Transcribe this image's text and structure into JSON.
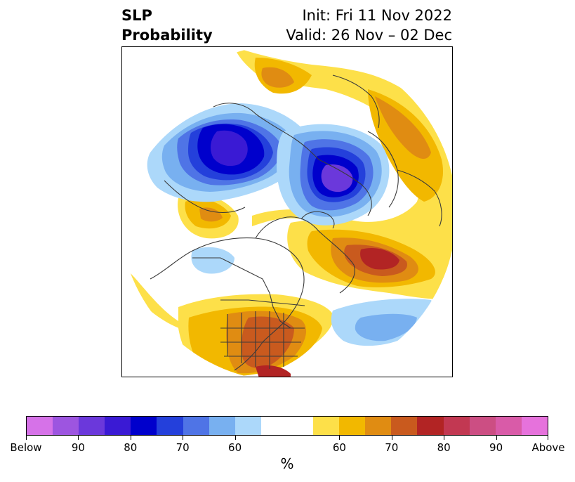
{
  "title": {
    "left_line1": "SLP",
    "left_line2": "Probability",
    "right_line1": "Init: Fri 11 Nov 2022",
    "right_line2": "Valid: 26 Nov – 02 Dec"
  },
  "colorbar": {
    "colors": [
      "#d672e8",
      "#9d55e0",
      "#6b38db",
      "#3a1ad4",
      "#0000cc",
      "#2440db",
      "#4f74e6",
      "#78b0f0",
      "#acd8fa",
      "#ffffff",
      "#ffffff",
      "#fde049",
      "#f2b800",
      "#e08c12",
      "#c95a1e",
      "#b22424",
      "#c23852",
      "#cc4e83",
      "#d95ba8",
      "#e672dc"
    ],
    "tick_labels": [
      "Below",
      "90",
      "80",
      "70",
      "60",
      "60",
      "70",
      "80",
      "90",
      "Above"
    ],
    "unit": "%"
  },
  "map": {
    "region": "Northern Hemisphere polar stereographic",
    "below_colors": {
      "b60": "#acd8fa",
      "b65": "#78b0f0",
      "b70": "#4f74e6",
      "b75": "#2440db",
      "b80": "#0000cc",
      "b85": "#3a1ad4",
      "b90": "#6b38db"
    },
    "above_colors": {
      "a55": "#fde049",
      "a60": "#f2b800",
      "a65": "#e08c12",
      "a70": "#c95a1e",
      "a75": "#b22424"
    },
    "coastline_color": "#3a3a3a"
  }
}
